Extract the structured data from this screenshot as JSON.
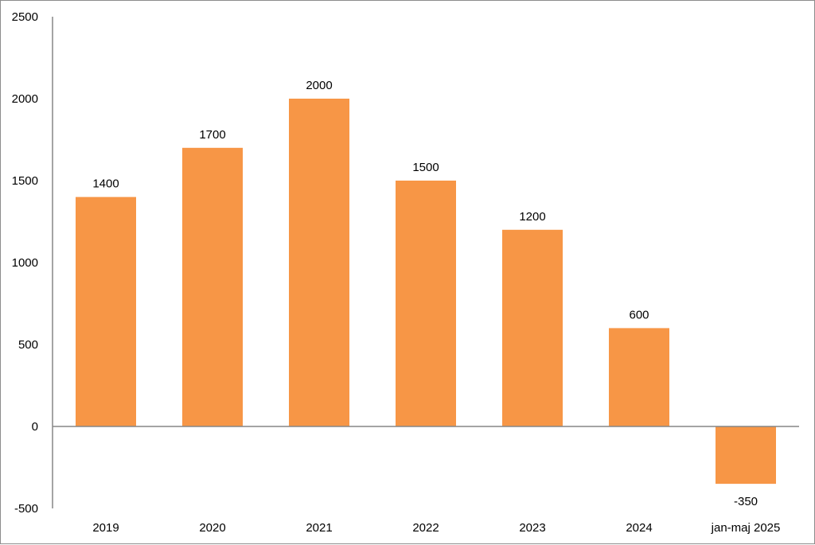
{
  "chart_data": {
    "type": "bar",
    "categories": [
      "2019",
      "2020",
      "2021",
      "2022",
      "2023",
      "2024",
      "jan-maj 2025"
    ],
    "values": [
      1400,
      1700,
      2000,
      1500,
      1200,
      600,
      -350
    ],
    "data_labels": [
      "1400",
      "1700",
      "2000",
      "1500",
      "1200",
      "600",
      "-350"
    ],
    "y_ticks": [
      "-500",
      "0",
      "500",
      "1000",
      "1500",
      "2000",
      "2500"
    ],
    "ylim": [
      -500,
      2500
    ],
    "title": "",
    "xlabel": "",
    "ylabel": "",
    "grid": false,
    "legend": "none",
    "bar_color": "#F79646",
    "axis_color": "#868686"
  }
}
